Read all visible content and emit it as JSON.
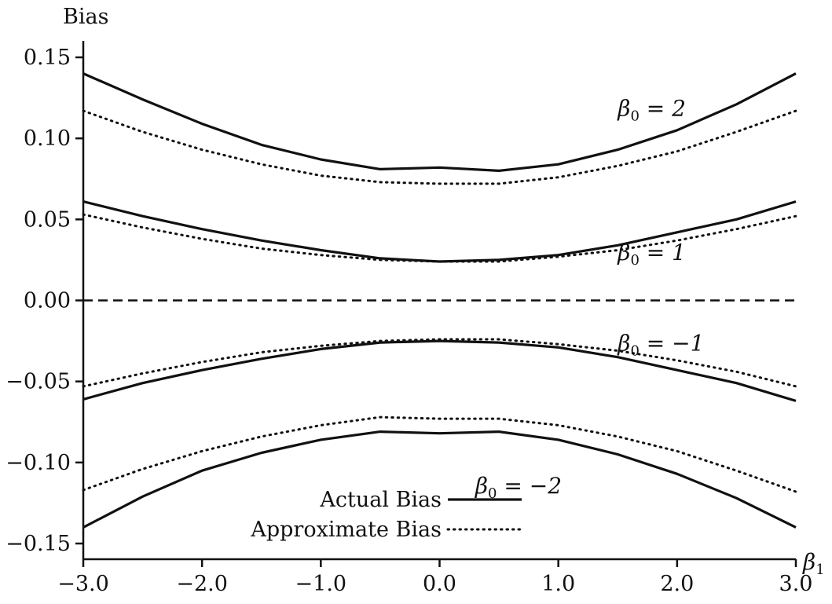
{
  "chart_data": {
    "type": "line",
    "ylabel": "Bias",
    "xlabel_symbol": "β",
    "xlabel_subscript": "1",
    "xlim": [
      -3.0,
      3.0
    ],
    "ylim": [
      -0.16,
      0.16
    ],
    "xticks": [
      -3.0,
      -2.0,
      -1.0,
      0.0,
      1.0,
      2.0,
      3.0
    ],
    "xtick_labels": [
      "−3.0",
      "−2.0",
      "−1.0",
      "0.0",
      "1.0",
      "2.0",
      "3.0"
    ],
    "yticks": [
      0.15,
      0.1,
      0.05,
      0.0,
      -0.05,
      -0.1,
      -0.15
    ],
    "ytick_labels": [
      "0.15",
      "0.10",
      "0.05",
      "0.00",
      "−0.05",
      "−0.10",
      "−0.15"
    ],
    "grid": false,
    "legend_position": "bottom-center",
    "legend": [
      {
        "label": "Actual Bias",
        "style": "solid"
      },
      {
        "label": "Approximate Bias",
        "style": "dotted"
      }
    ],
    "x": [
      -3.0,
      -2.5,
      -2.0,
      -1.5,
      -1.0,
      -0.5,
      0.0,
      0.5,
      1.0,
      1.5,
      2.0,
      2.5,
      3.0
    ],
    "series": [
      {
        "curve": "β0 = 2",
        "style": "solid",
        "values": [
          0.14,
          0.124,
          0.109,
          0.096,
          0.087,
          0.081,
          0.082,
          0.08,
          0.084,
          0.093,
          0.105,
          0.121,
          0.14
        ]
      },
      {
        "curve": "β0 = 2",
        "style": "dotted",
        "values": [
          0.117,
          0.104,
          0.093,
          0.084,
          0.077,
          0.073,
          0.072,
          0.072,
          0.076,
          0.083,
          0.092,
          0.104,
          0.117
        ]
      },
      {
        "curve": "β0 = 1",
        "style": "solid",
        "values": [
          0.061,
          0.052,
          0.044,
          0.037,
          0.031,
          0.026,
          0.024,
          0.025,
          0.028,
          0.034,
          0.042,
          0.05,
          0.061
        ]
      },
      {
        "curve": "β0 = 1",
        "style": "dotted",
        "values": [
          0.053,
          0.045,
          0.038,
          0.032,
          0.028,
          0.025,
          0.024,
          0.024,
          0.027,
          0.031,
          0.037,
          0.044,
          0.052
        ]
      },
      {
        "curve": "zero reference",
        "style": "dashed",
        "values": [
          0,
          0,
          0,
          0,
          0,
          0,
          0,
          0,
          0,
          0,
          0,
          0,
          0
        ]
      },
      {
        "curve": "β0 = −1",
        "style": "dotted",
        "values": [
          -0.053,
          -0.045,
          -0.038,
          -0.032,
          -0.028,
          -0.025,
          -0.024,
          -0.024,
          -0.027,
          -0.031,
          -0.037,
          -0.044,
          -0.053
        ]
      },
      {
        "curve": "β0 = −1",
        "style": "solid",
        "values": [
          -0.061,
          -0.051,
          -0.043,
          -0.036,
          -0.03,
          -0.026,
          -0.025,
          -0.026,
          -0.029,
          -0.035,
          -0.043,
          -0.051,
          -0.062
        ]
      },
      {
        "curve": "β0 = −2",
        "style": "dotted",
        "values": [
          -0.117,
          -0.104,
          -0.093,
          -0.084,
          -0.077,
          -0.072,
          -0.073,
          -0.073,
          -0.077,
          -0.084,
          -0.093,
          -0.105,
          -0.118
        ]
      },
      {
        "curve": "β0 = −2",
        "style": "solid",
        "values": [
          -0.14,
          -0.121,
          -0.105,
          -0.094,
          -0.086,
          -0.081,
          -0.082,
          -0.081,
          -0.086,
          -0.095,
          -0.107,
          -0.122,
          -0.14
        ]
      }
    ],
    "curve_labels": [
      {
        "base": "β",
        "sub": "0",
        "text": " = 2",
        "x": 1.5,
        "y": 0.114
      },
      {
        "base": "β",
        "sub": "0",
        "text": " = 1",
        "x": 1.5,
        "y": 0.025
      },
      {
        "base": "β",
        "sub": "0",
        "text": " = −1",
        "x": 1.5,
        "y": -0.031
      },
      {
        "base": "β",
        "sub": "0",
        "text": " = −2",
        "x": 0.3,
        "y": -0.119
      }
    ]
  }
}
